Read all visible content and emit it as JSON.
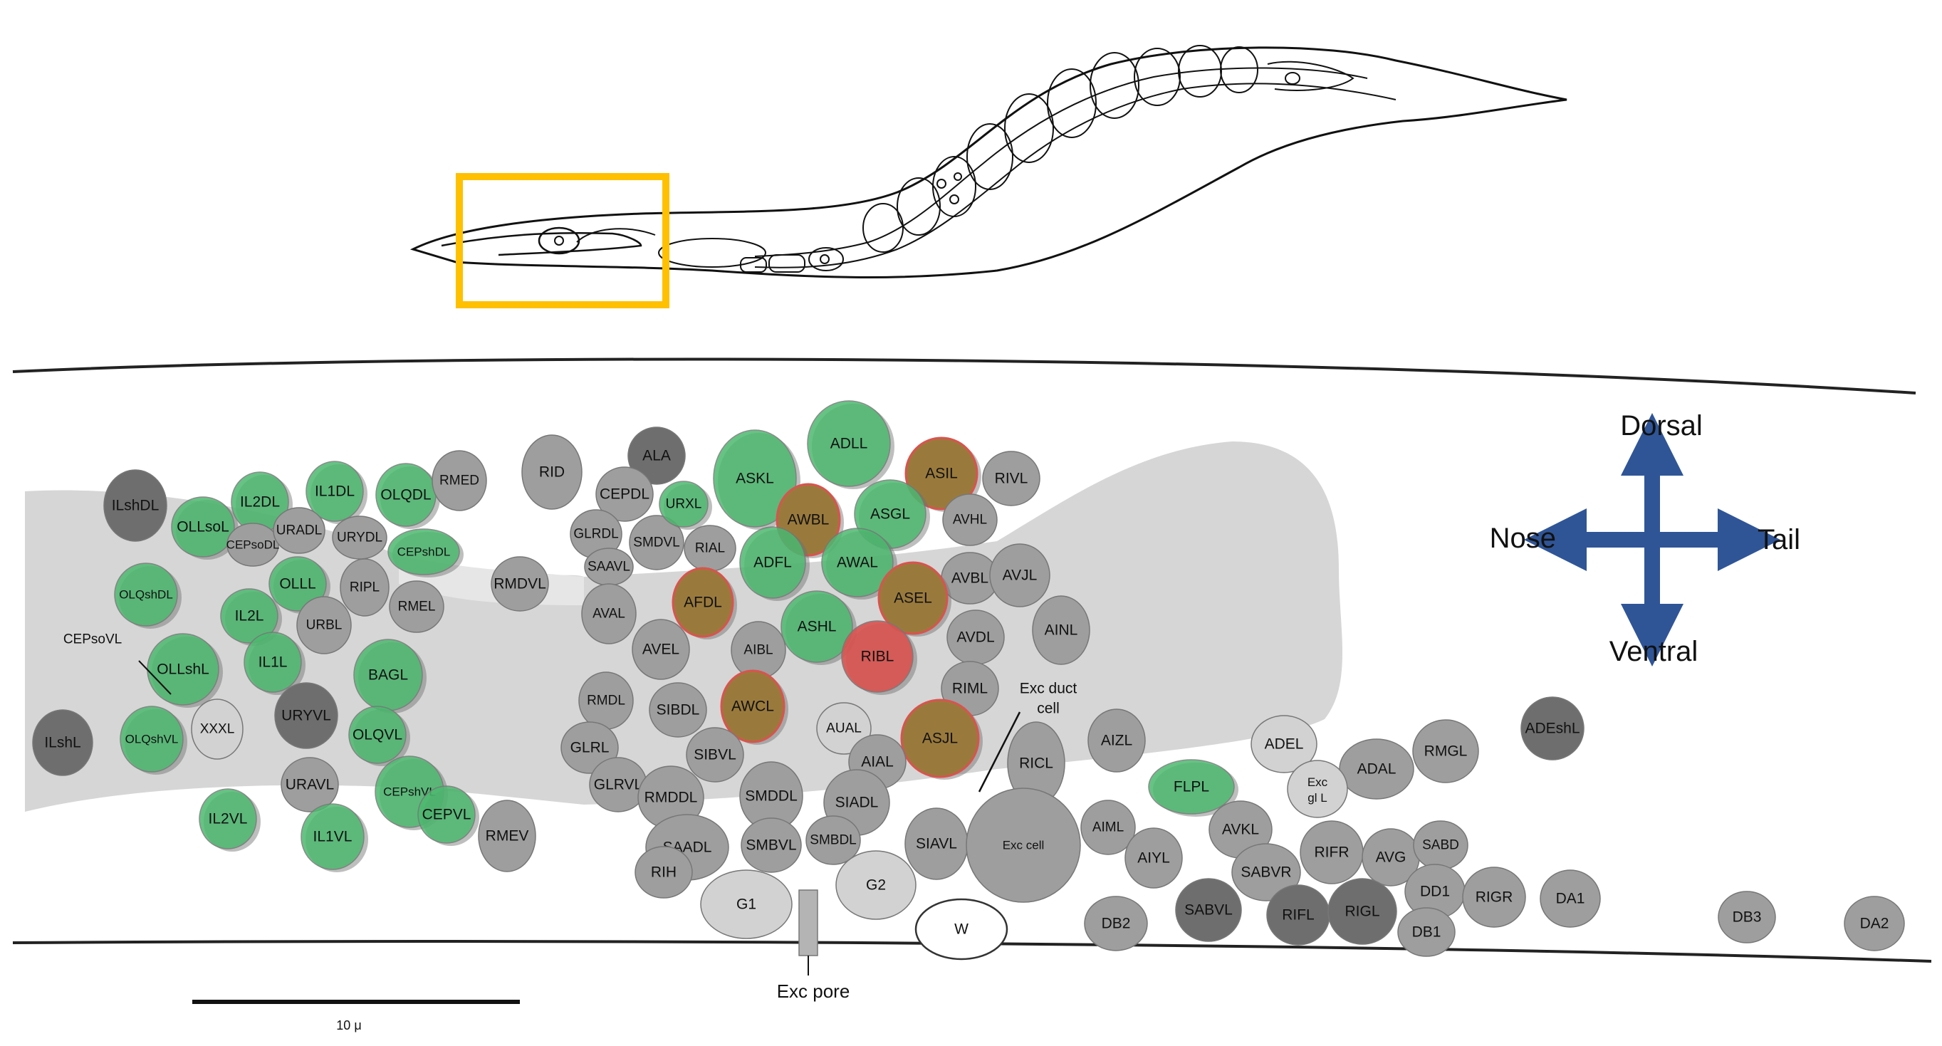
{
  "compass": {
    "dorsal": "Dorsal",
    "ventral": "Ventral",
    "nose": "Nose",
    "tail": "Tail",
    "arrow_color": "#2f5597"
  },
  "highlight_box_color": "#ffc000",
  "scale_bar": {
    "label": "10 μ"
  },
  "structure_labels": {
    "exc_pore": "Exc pore",
    "exc_duct_line1": "Exc duct",
    "exc_duct_line2": "cell",
    "cepsovl": "CEPsoVL"
  },
  "colors": {
    "gray": "#9e9e9e",
    "dark": "#6e6e6e",
    "light": "#d2d2d2",
    "white": "#ffffff",
    "green": "#4cb96f",
    "red": "#d9534f",
    "brown": "#9a7a3c"
  },
  "cells": [
    {
      "name": "ILshDL",
      "t": "dark"
    },
    {
      "name": "OLLsoL",
      "t": "green"
    },
    {
      "name": "IL2DL",
      "t": "green"
    },
    {
      "name": "IL1DL",
      "t": "green"
    },
    {
      "name": "OLQDL",
      "t": "green"
    },
    {
      "name": "RMED",
      "t": "gray"
    },
    {
      "name": "CEPsoDL",
      "t": "gray"
    },
    {
      "name": "URADL",
      "t": "gray"
    },
    {
      "name": "URYDL",
      "t": "gray"
    },
    {
      "name": "CEPshDL",
      "t": "green"
    },
    {
      "name": "OLQshDL",
      "t": "green"
    },
    {
      "name": "OLLL",
      "t": "green"
    },
    {
      "name": "RIPL",
      "t": "gray"
    },
    {
      "name": "IL2L",
      "t": "green"
    },
    {
      "name": "URBL",
      "t": "gray"
    },
    {
      "name": "RMEL",
      "t": "gray"
    },
    {
      "name": "OLLshL",
      "t": "green"
    },
    {
      "name": "IL1L",
      "t": "green"
    },
    {
      "name": "BAGL",
      "t": "green"
    },
    {
      "name": "ILshL",
      "t": "dark"
    },
    {
      "name": "OLQshVL",
      "t": "green"
    },
    {
      "name": "XXXL",
      "t": "light"
    },
    {
      "name": "URYVL",
      "t": "dark"
    },
    {
      "name": "OLQVL",
      "t": "green"
    },
    {
      "name": "URAVL",
      "t": "gray"
    },
    {
      "name": "IL2VL",
      "t": "green"
    },
    {
      "name": "IL1VL",
      "t": "green"
    },
    {
      "name": "CEPshVL",
      "t": "green"
    },
    {
      "name": "CEPVL",
      "t": "green"
    },
    {
      "name": "RMEV",
      "t": "gray"
    },
    {
      "name": "RMDVL",
      "t": "gray"
    },
    {
      "name": "RID",
      "t": "gray"
    },
    {
      "name": "ALA",
      "t": "dark"
    },
    {
      "name": "CEPDL",
      "t": "gray"
    },
    {
      "name": "GLRDL",
      "t": "gray"
    },
    {
      "name": "SMDVL",
      "t": "gray"
    },
    {
      "name": "URXL",
      "t": "green"
    },
    {
      "name": "RIAL",
      "t": "gray"
    },
    {
      "name": "SAAVL",
      "t": "gray"
    },
    {
      "name": "AVAL",
      "t": "gray"
    },
    {
      "name": "AFDL",
      "t": "brown"
    },
    {
      "name": "AVEL",
      "t": "gray"
    },
    {
      "name": "ASKL",
      "t": "green"
    },
    {
      "name": "ADLL",
      "t": "green"
    },
    {
      "name": "ASIL",
      "t": "brown"
    },
    {
      "name": "RIVL",
      "t": "gray"
    },
    {
      "name": "AWBL",
      "t": "brown"
    },
    {
      "name": "ASGL",
      "t": "green"
    },
    {
      "name": "AVHL",
      "t": "gray"
    },
    {
      "name": "ADFL",
      "t": "green"
    },
    {
      "name": "AWAL",
      "t": "green"
    },
    {
      "name": "AVBL",
      "t": "gray"
    },
    {
      "name": "AVJL",
      "t": "gray"
    },
    {
      "name": "ASEL",
      "t": "brown"
    },
    {
      "name": "ASHL",
      "t": "green"
    },
    {
      "name": "AIBL",
      "t": "gray"
    },
    {
      "name": "RIBL",
      "t": "red"
    },
    {
      "name": "AVDL",
      "t": "gray"
    },
    {
      "name": "AINL",
      "t": "gray"
    },
    {
      "name": "RMDL",
      "t": "gray"
    },
    {
      "name": "SIBDL",
      "t": "gray"
    },
    {
      "name": "AWCL",
      "t": "brown"
    },
    {
      "name": "RIML",
      "t": "gray"
    },
    {
      "name": "AUAL",
      "t": "light"
    },
    {
      "name": "ASJL",
      "t": "brown"
    },
    {
      "name": "GLRL",
      "t": "gray"
    },
    {
      "name": "SIBVL",
      "t": "gray"
    },
    {
      "name": "AIAL",
      "t": "gray"
    },
    {
      "name": "GLRVL",
      "t": "gray"
    },
    {
      "name": "RMDDL",
      "t": "gray"
    },
    {
      "name": "SMDDL",
      "t": "gray"
    },
    {
      "name": "SIADL",
      "t": "gray"
    },
    {
      "name": "SAADL",
      "t": "gray"
    },
    {
      "name": "RIH",
      "t": "gray"
    },
    {
      "name": "SMBVL",
      "t": "gray"
    },
    {
      "name": "SMBDL",
      "t": "gray"
    },
    {
      "name": "SIAVL",
      "t": "gray"
    },
    {
      "name": "RICL",
      "t": "gray"
    },
    {
      "name": "Exc cell",
      "t": "gray"
    },
    {
      "name": "G1",
      "t": "light"
    },
    {
      "name": "G2",
      "t": "light"
    },
    {
      "name": "W",
      "t": "white"
    },
    {
      "name": "AIZL",
      "t": "gray"
    },
    {
      "name": "AIML",
      "t": "gray"
    },
    {
      "name": "AIYL",
      "t": "gray"
    },
    {
      "name": "DB2",
      "t": "gray"
    },
    {
      "name": "FLPL",
      "t": "green"
    },
    {
      "name": "ADEL",
      "t": "light"
    },
    {
      "name": "ADAL",
      "t": "gray"
    },
    {
      "name": "RMGL",
      "t": "gray"
    },
    {
      "name": "ADEshL",
      "t": "dark"
    },
    {
      "name": "Exc gl L",
      "t": "light"
    },
    {
      "name": "AVKL",
      "t": "gray"
    },
    {
      "name": "SABVR",
      "t": "gray"
    },
    {
      "name": "SABVL",
      "t": "dark"
    },
    {
      "name": "RIFR",
      "t": "gray"
    },
    {
      "name": "RIFL",
      "t": "dark"
    },
    {
      "name": "AVG",
      "t": "gray"
    },
    {
      "name": "RIGL",
      "t": "dark"
    },
    {
      "name": "SABD",
      "t": "gray"
    },
    {
      "name": "DD1",
      "t": "gray"
    },
    {
      "name": "DB1",
      "t": "gray"
    },
    {
      "name": "RIGR",
      "t": "gray"
    },
    {
      "name": "DA1",
      "t": "gray"
    },
    {
      "name": "DB3",
      "t": "gray"
    },
    {
      "name": "DA2",
      "t": "gray"
    }
  ]
}
